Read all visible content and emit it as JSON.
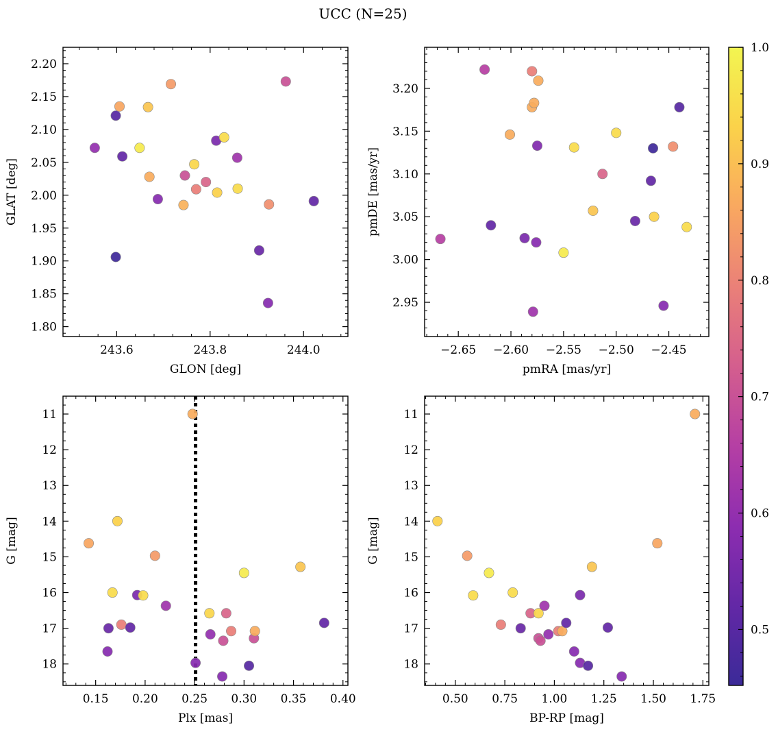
{
  "figure": {
    "title": "UCC (N=25)"
  },
  "colorbar": {
    "min": 0.452,
    "max": 1.0,
    "ticks": [
      0.5,
      0.6,
      0.7,
      0.8,
      0.9,
      1.0
    ],
    "tick_labels": [
      "0.5",
      "0.6",
      "0.7",
      "0.8",
      "0.9",
      "1.0"
    ],
    "colormap": "plasma",
    "stops": [
      "#3b2a98",
      "#6328a6",
      "#8d2db0",
      "#b53fa4",
      "#d45e8e",
      "#ea8078",
      "#f9a860",
      "#fbd24a",
      "#f2f551"
    ]
  },
  "chart_data": [
    {
      "type": "scatter",
      "name": "glon-glat",
      "xlabel": "GLON [deg]",
      "ylabel": "GLAT [deg]",
      "xlim": [
        243.485,
        244.095
      ],
      "ylim": [
        1.785,
        2.225
      ],
      "xticks": [
        243.6,
        243.8,
        244.0
      ],
      "xtick_labels": [
        "243.6",
        "243.8",
        "244.0"
      ],
      "yticks": [
        1.8,
        1.85,
        1.9,
        1.95,
        2.0,
        2.05,
        2.1,
        2.15,
        2.2
      ],
      "ytick_labels": [
        "1.80",
        "1.85",
        "1.90",
        "1.95",
        "2.00",
        "2.05",
        "2.10",
        "2.15",
        "2.20"
      ],
      "points": [
        {
          "x": 243.553,
          "y": 2.072,
          "c": 0.6
        },
        {
          "x": 243.598,
          "y": 2.121,
          "c": 0.5
        },
        {
          "x": 243.598,
          "y": 1.906,
          "c": 0.46
        },
        {
          "x": 243.606,
          "y": 2.135,
          "c": 0.86
        },
        {
          "x": 243.612,
          "y": 2.059,
          "c": 0.52
        },
        {
          "x": 243.649,
          "y": 2.072,
          "c": 0.98
        },
        {
          "x": 243.667,
          "y": 2.134,
          "c": 0.91
        },
        {
          "x": 243.67,
          "y": 2.028,
          "c": 0.87
        },
        {
          "x": 243.688,
          "y": 1.994,
          "c": 0.58
        },
        {
          "x": 243.716,
          "y": 2.169,
          "c": 0.84
        },
        {
          "x": 243.743,
          "y": 1.985,
          "c": 0.88
        },
        {
          "x": 243.746,
          "y": 2.03,
          "c": 0.7
        },
        {
          "x": 243.766,
          "y": 2.047,
          "c": 0.94
        },
        {
          "x": 243.77,
          "y": 2.009,
          "c": 0.79
        },
        {
          "x": 243.791,
          "y": 2.02,
          "c": 0.74
        },
        {
          "x": 243.813,
          "y": 2.083,
          "c": 0.56
        },
        {
          "x": 243.815,
          "y": 2.004,
          "c": 0.93
        },
        {
          "x": 243.83,
          "y": 2.088,
          "c": 0.95
        },
        {
          "x": 243.858,
          "y": 2.057,
          "c": 0.62
        },
        {
          "x": 243.859,
          "y": 2.01,
          "c": 0.95
        },
        {
          "x": 243.905,
          "y": 1.916,
          "c": 0.53
        },
        {
          "x": 243.924,
          "y": 1.836,
          "c": 0.58
        },
        {
          "x": 243.926,
          "y": 1.986,
          "c": 0.82
        },
        {
          "x": 243.962,
          "y": 2.173,
          "c": 0.7
        },
        {
          "x": 244.022,
          "y": 1.991,
          "c": 0.52
        }
      ]
    },
    {
      "type": "scatter",
      "name": "pmra-pmde",
      "xlabel": "pmRA [mas/yr]",
      "ylabel": "pmDE [mas/yr]",
      "xlim": [
        -2.682,
        -2.412
      ],
      "ylim": [
        2.91,
        3.248
      ],
      "xticks": [
        -2.65,
        -2.6,
        -2.55,
        -2.5,
        -2.45
      ],
      "xtick_labels": [
        "−2.65",
        "−2.60",
        "−2.55",
        "−2.50",
        "−2.45"
      ],
      "yticks": [
        2.95,
        3.0,
        3.05,
        3.1,
        3.15,
        3.2
      ],
      "ytick_labels": [
        "2.95",
        "3.00",
        "3.05",
        "3.10",
        "3.15",
        "3.20"
      ],
      "points": [
        {
          "x": -2.667,
          "y": 3.024,
          "c": 0.66
        },
        {
          "x": -2.625,
          "y": 3.222,
          "c": 0.66
        },
        {
          "x": -2.619,
          "y": 3.04,
          "c": 0.52
        },
        {
          "x": -2.601,
          "y": 3.146,
          "c": 0.87
        },
        {
          "x": -2.587,
          "y": 3.025,
          "c": 0.56
        },
        {
          "x": -2.58,
          "y": 3.22,
          "c": 0.79
        },
        {
          "x": -2.58,
          "y": 3.178,
          "c": 0.87
        },
        {
          "x": -2.579,
          "y": 2.939,
          "c": 0.62
        },
        {
          "x": -2.578,
          "y": 3.183,
          "c": 0.87
        },
        {
          "x": -2.576,
          "y": 3.02,
          "c": 0.58
        },
        {
          "x": -2.575,
          "y": 3.133,
          "c": 0.57
        },
        {
          "x": -2.574,
          "y": 3.209,
          "c": 0.87
        },
        {
          "x": -2.55,
          "y": 3.008,
          "c": 0.98
        },
        {
          "x": -2.54,
          "y": 3.131,
          "c": 0.95
        },
        {
          "x": -2.522,
          "y": 3.057,
          "c": 0.91
        },
        {
          "x": -2.513,
          "y": 3.1,
          "c": 0.74
        },
        {
          "x": -2.5,
          "y": 3.148,
          "c": 0.95
        },
        {
          "x": -2.482,
          "y": 3.045,
          "c": 0.53
        },
        {
          "x": -2.467,
          "y": 3.092,
          "c": 0.52
        },
        {
          "x": -2.465,
          "y": 3.13,
          "c": 0.46
        },
        {
          "x": -2.464,
          "y": 3.05,
          "c": 0.93
        },
        {
          "x": -2.455,
          "y": 2.946,
          "c": 0.58
        },
        {
          "x": -2.446,
          "y": 3.132,
          "c": 0.82
        },
        {
          "x": -2.44,
          "y": 3.178,
          "c": 0.5
        },
        {
          "x": -2.433,
          "y": 3.038,
          "c": 0.95
        }
      ]
    },
    {
      "type": "scatter",
      "name": "plx-g",
      "xlabel": "Plx [mas]",
      "ylabel": "G [mag]",
      "xlim": [
        0.117,
        0.405
      ],
      "ylim": [
        18.6,
        10.5
      ],
      "y_inverted": true,
      "vline": 0.251,
      "xticks": [
        0.15,
        0.2,
        0.25,
        0.3,
        0.35,
        0.4
      ],
      "xtick_labels": [
        "0.15",
        "0.20",
        "0.25",
        "0.30",
        "0.35",
        "0.40"
      ],
      "yticks": [
        11,
        12,
        13,
        14,
        15,
        16,
        17,
        18
      ],
      "ytick_labels": [
        "11",
        "12",
        "13",
        "14",
        "15",
        "16",
        "17",
        "18"
      ],
      "points": [
        {
          "x": 0.143,
          "y": 14.62,
          "c": 0.86
        },
        {
          "x": 0.162,
          "y": 17.65,
          "c": 0.58
        },
        {
          "x": 0.163,
          "y": 17.0,
          "c": 0.53
        },
        {
          "x": 0.167,
          "y": 16.0,
          "c": 0.95
        },
        {
          "x": 0.172,
          "y": 14.0,
          "c": 0.93
        },
        {
          "x": 0.176,
          "y": 16.9,
          "c": 0.79
        },
        {
          "x": 0.185,
          "y": 16.98,
          "c": 0.52
        },
        {
          "x": 0.192,
          "y": 16.07,
          "c": 0.56
        },
        {
          "x": 0.198,
          "y": 16.08,
          "c": 0.95
        },
        {
          "x": 0.21,
          "y": 14.97,
          "c": 0.84
        },
        {
          "x": 0.221,
          "y": 16.37,
          "c": 0.62
        },
        {
          "x": 0.248,
          "y": 11.0,
          "c": 0.87
        },
        {
          "x": 0.251,
          "y": 17.97,
          "c": 0.58
        },
        {
          "x": 0.265,
          "y": 16.58,
          "c": 0.94
        },
        {
          "x": 0.266,
          "y": 17.17,
          "c": 0.6
        },
        {
          "x": 0.278,
          "y": 18.35,
          "c": 0.58
        },
        {
          "x": 0.279,
          "y": 17.35,
          "c": 0.7
        },
        {
          "x": 0.282,
          "y": 16.58,
          "c": 0.74
        },
        {
          "x": 0.287,
          "y": 17.08,
          "c": 0.79
        },
        {
          "x": 0.3,
          "y": 15.45,
          "c": 0.98
        },
        {
          "x": 0.305,
          "y": 18.05,
          "c": 0.5
        },
        {
          "x": 0.31,
          "y": 17.28,
          "c": 0.7
        },
        {
          "x": 0.311,
          "y": 17.08,
          "c": 0.87
        },
        {
          "x": 0.357,
          "y": 15.28,
          "c": 0.91
        },
        {
          "x": 0.381,
          "y": 16.85,
          "c": 0.52
        }
      ]
    },
    {
      "type": "scatter",
      "name": "bprp-g",
      "xlabel": "BP-RP [mag]",
      "ylabel": "G [mag]",
      "xlim": [
        0.345,
        1.78
      ],
      "ylim": [
        18.6,
        10.5
      ],
      "y_inverted": true,
      "xticks": [
        0.5,
        0.75,
        1.0,
        1.25,
        1.5,
        1.75
      ],
      "xtick_labels": [
        "0.50",
        "0.75",
        "1.00",
        "1.25",
        "1.50",
        "1.75"
      ],
      "yticks": [
        11,
        12,
        13,
        14,
        15,
        16,
        17,
        18
      ],
      "ytick_labels": [
        "11",
        "12",
        "13",
        "14",
        "15",
        "16",
        "17",
        "18"
      ],
      "points": [
        {
          "x": 0.41,
          "y": 14.0,
          "c": 0.93
        },
        {
          "x": 0.56,
          "y": 14.97,
          "c": 0.84
        },
        {
          "x": 0.59,
          "y": 16.08,
          "c": 0.95
        },
        {
          "x": 0.67,
          "y": 15.45,
          "c": 0.98
        },
        {
          "x": 0.73,
          "y": 16.9,
          "c": 0.79
        },
        {
          "x": 0.79,
          "y": 16.0,
          "c": 0.95
        },
        {
          "x": 0.83,
          "y": 17.0,
          "c": 0.53
        },
        {
          "x": 0.88,
          "y": 16.58,
          "c": 0.74
        },
        {
          "x": 0.92,
          "y": 17.28,
          "c": 0.7
        },
        {
          "x": 0.92,
          "y": 16.58,
          "c": 0.94
        },
        {
          "x": 0.93,
          "y": 17.35,
          "c": 0.7
        },
        {
          "x": 0.95,
          "y": 16.37,
          "c": 0.62
        },
        {
          "x": 0.97,
          "y": 17.17,
          "c": 0.6
        },
        {
          "x": 1.02,
          "y": 17.08,
          "c": 0.79
        },
        {
          "x": 1.04,
          "y": 17.08,
          "c": 0.87
        },
        {
          "x": 1.06,
          "y": 16.85,
          "c": 0.52
        },
        {
          "x": 1.1,
          "y": 17.65,
          "c": 0.58
        },
        {
          "x": 1.13,
          "y": 16.07,
          "c": 0.56
        },
        {
          "x": 1.13,
          "y": 17.97,
          "c": 0.58
        },
        {
          "x": 1.17,
          "y": 18.05,
          "c": 0.5
        },
        {
          "x": 1.19,
          "y": 15.28,
          "c": 0.91
        },
        {
          "x": 1.27,
          "y": 16.98,
          "c": 0.52
        },
        {
          "x": 1.34,
          "y": 18.35,
          "c": 0.58
        },
        {
          "x": 1.52,
          "y": 14.62,
          "c": 0.86
        },
        {
          "x": 1.71,
          "y": 11.0,
          "c": 0.87
        }
      ]
    }
  ]
}
